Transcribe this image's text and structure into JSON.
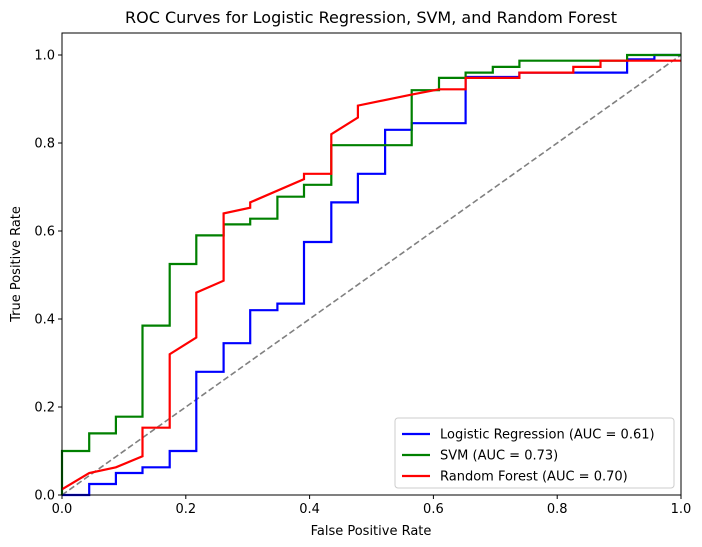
{
  "chart_data": {
    "type": "line",
    "title": "ROC Curves for Logistic Regression, SVM, and Random Forest",
    "xlabel": "False Positive Rate",
    "ylabel": "True Positive Rate",
    "xlim": [
      0.0,
      1.0
    ],
    "ylim": [
      0.0,
      1.05
    ],
    "xticks": [
      "0.0",
      "0.2",
      "0.4",
      "0.6",
      "0.8",
      "1.0"
    ],
    "yticks": [
      "0.0",
      "0.2",
      "0.4",
      "0.6",
      "0.8",
      "1.0"
    ],
    "grid": false,
    "legend_position": "lower-right",
    "series": [
      {
        "name": "Logistic Regression (AUC = 0.61)",
        "color": "#0000ff",
        "x": [
          0.0,
          0.0,
          0.044,
          0.044,
          0.087,
          0.087,
          0.13,
          0.13,
          0.174,
          0.174,
          0.217,
          0.217,
          0.261,
          0.261,
          0.304,
          0.304,
          0.348,
          0.348,
          0.391,
          0.391,
          0.435,
          0.435,
          0.478,
          0.478,
          0.522,
          0.522,
          0.565,
          0.565,
          0.609,
          0.609,
          0.652,
          0.652,
          0.696,
          0.696,
          0.739,
          0.739,
          0.913,
          0.913,
          0.957,
          0.957,
          1.0
        ],
        "y": [
          0.0,
          0.0,
          0.0,
          0.025,
          0.025,
          0.05,
          0.05,
          0.063,
          0.063,
          0.1,
          0.1,
          0.28,
          0.28,
          0.345,
          0.345,
          0.42,
          0.42,
          0.435,
          0.435,
          0.575,
          0.575,
          0.665,
          0.665,
          0.73,
          0.73,
          0.83,
          0.83,
          0.845,
          0.845,
          0.845,
          0.845,
          0.95,
          0.95,
          0.95,
          0.95,
          0.96,
          0.96,
          0.99,
          0.99,
          1.0,
          1.0
        ]
      },
      {
        "name": "SVM (AUC = 0.73)",
        "color": "#008000",
        "x": [
          0.0,
          0.0,
          0.044,
          0.044,
          0.087,
          0.087,
          0.13,
          0.13,
          0.174,
          0.174,
          0.217,
          0.217,
          0.261,
          0.261,
          0.304,
          0.304,
          0.348,
          0.348,
          0.391,
          0.391,
          0.435,
          0.435,
          0.565,
          0.565,
          0.609,
          0.609,
          0.652,
          0.652,
          0.696,
          0.696,
          0.739,
          0.739,
          0.913,
          0.913,
          1.0
        ],
        "y": [
          0.0,
          0.1,
          0.1,
          0.14,
          0.14,
          0.178,
          0.178,
          0.385,
          0.385,
          0.525,
          0.525,
          0.59,
          0.59,
          0.615,
          0.615,
          0.628,
          0.628,
          0.678,
          0.678,
          0.705,
          0.705,
          0.795,
          0.795,
          0.92,
          0.92,
          0.948,
          0.948,
          0.96,
          0.96,
          0.973,
          0.973,
          0.987,
          0.987,
          1.0,
          1.0
        ]
      },
      {
        "name": "Random Forest (AUC = 0.70)",
        "color": "#ff0000",
        "x": [
          0.0,
          0.044,
          0.087,
          0.13,
          0.13,
          0.174,
          0.174,
          0.217,
          0.217,
          0.261,
          0.261,
          0.304,
          0.304,
          0.391,
          0.391,
          0.435,
          0.435,
          0.478,
          0.478,
          0.565,
          0.565,
          0.609,
          0.609,
          0.652,
          0.652,
          0.739,
          0.739,
          0.826,
          0.826,
          0.87,
          0.87,
          0.913,
          0.913,
          1.0
        ],
        "y": [
          0.013,
          0.05,
          0.063,
          0.088,
          0.153,
          0.153,
          0.32,
          0.358,
          0.46,
          0.487,
          0.64,
          0.653,
          0.665,
          0.718,
          0.73,
          0.73,
          0.82,
          0.858,
          0.885,
          0.91,
          0.91,
          0.922,
          0.922,
          0.922,
          0.948,
          0.948,
          0.96,
          0.96,
          0.973,
          0.973,
          0.987,
          0.987,
          0.987,
          0.987
        ]
      }
    ],
    "reference_line": {
      "style": "dashed",
      "color": "#808080",
      "x": [
        0.0,
        1.0
      ],
      "y": [
        0.0,
        1.0
      ]
    }
  }
}
